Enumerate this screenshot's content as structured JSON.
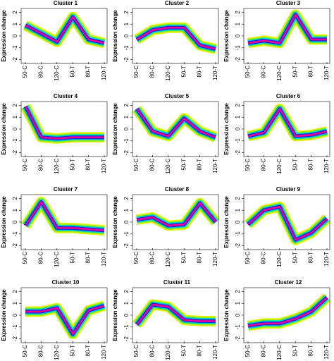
{
  "chart_data": [
    {
      "type": "line",
      "title": "Cluster 1",
      "categories": [
        "50-C",
        "80-C",
        "120-C",
        "50-T",
        "80-T",
        "120-T"
      ],
      "values": [
        0.9,
        0.2,
        -0.5,
        1.6,
        -0.3,
        -0.6
      ],
      "ylabel": "Expression change",
      "ylim": [
        -2.2,
        2.2
      ],
      "yticks": [
        -2,
        -1,
        0,
        1,
        2
      ]
    },
    {
      "type": "line",
      "title": "Cluster 2",
      "categories": [
        "50-C",
        "80-C",
        "120-C",
        "50-T",
        "80-T",
        "120-T"
      ],
      "values": [
        -0.3,
        0.5,
        0.7,
        0.7,
        -0.8,
        -1.1
      ],
      "ylabel": "Expression change",
      "ylim": [
        -2.2,
        2.2
      ],
      "yticks": [
        -2,
        -1,
        0,
        1,
        2
      ]
    },
    {
      "type": "line",
      "title": "Cluster 3",
      "categories": [
        "50-C",
        "80-C",
        "120-C",
        "50-T",
        "80-T",
        "120-T"
      ],
      "values": [
        -0.6,
        -0.4,
        -0.6,
        1.8,
        -0.3,
        -0.3
      ],
      "ylabel": "Expression change",
      "ylim": [
        -2.2,
        2.2
      ],
      "yticks": [
        -2,
        -1,
        0,
        1,
        2
      ]
    },
    {
      "type": "line",
      "title": "Cluster 4",
      "categories": [
        "50-C",
        "80-C",
        "120-C",
        "50-T",
        "80-T",
        "120-T"
      ],
      "values": [
        1.9,
        -0.7,
        -0.8,
        -0.7,
        -0.7,
        -0.7
      ],
      "ylabel": "Expression change",
      "ylim": [
        -2.2,
        2.2
      ],
      "yticks": [
        -2,
        -1,
        0,
        1,
        2
      ]
    },
    {
      "type": "line",
      "title": "Cluster 5",
      "categories": [
        "50-C",
        "80-C",
        "120-C",
        "50-T",
        "80-T",
        "120-T"
      ],
      "values": [
        1.7,
        -0.2,
        -0.6,
        0.9,
        -0.2,
        -0.7
      ],
      "ylabel": "Expression change",
      "ylim": [
        -2.2,
        2.2
      ],
      "yticks": [
        -2,
        -1,
        0,
        1,
        2
      ]
    },
    {
      "type": "line",
      "title": "Cluster 6",
      "categories": [
        "50-C",
        "80-C",
        "120-C",
        "50-T",
        "80-T",
        "120-T"
      ],
      "values": [
        -0.6,
        -0.3,
        1.7,
        -0.6,
        -0.5,
        -0.2
      ],
      "ylabel": "Expression change",
      "ylim": [
        -2.2,
        2.2
      ],
      "yticks": [
        -2,
        -1,
        0,
        1,
        2
      ]
    },
    {
      "type": "line",
      "title": "Cluster 7",
      "categories": [
        "50-C",
        "80-C",
        "120-C",
        "50-T",
        "80-T",
        "120-T"
      ],
      "values": [
        -0.3,
        1.7,
        -0.5,
        -0.5,
        -0.6,
        -0.7
      ],
      "ylabel": "Expression change",
      "ylim": [
        -2.2,
        2.2
      ],
      "yticks": [
        -2,
        -1,
        0,
        1,
        2
      ]
    },
    {
      "type": "line",
      "title": "Cluster 8",
      "categories": [
        "50-C",
        "80-C",
        "120-C",
        "50-T",
        "80-T",
        "120-T"
      ],
      "values": [
        0.2,
        0.4,
        -0.3,
        -0.2,
        1.6,
        0
      ],
      "ylabel": "Expression change",
      "ylim": [
        -2.2,
        2.2
      ],
      "yticks": [
        -2,
        -1,
        0,
        1,
        2
      ]
    },
    {
      "type": "line",
      "title": "Cluster 9",
      "categories": [
        "50-C",
        "80-C",
        "120-C",
        "50-T",
        "80-T",
        "120-T"
      ],
      "values": [
        -0.2,
        1.0,
        1.3,
        -1.5,
        -0.9,
        0.3
      ],
      "ylabel": "Expression change",
      "ylim": [
        -2.2,
        2.2
      ],
      "yticks": [
        -2,
        -1,
        0,
        1,
        2
      ]
    },
    {
      "type": "line",
      "title": "Cluster 10",
      "categories": [
        "50-C",
        "80-C",
        "120-C",
        "50-T",
        "80-T",
        "120-T"
      ],
      "values": [
        0.3,
        0.3,
        0.6,
        -1.6,
        0.4,
        0.8
      ],
      "ylabel": "Expression change",
      "ylim": [
        -2.2,
        2.2
      ],
      "yticks": [
        -2,
        -1,
        0,
        1,
        2
      ]
    },
    {
      "type": "line",
      "title": "Cluster 11",
      "categories": [
        "50-C",
        "80-C",
        "120-C",
        "50-T",
        "80-T",
        "120-T"
      ],
      "values": [
        -0.8,
        0.9,
        0.7,
        -0.4,
        -0.5,
        -0.5
      ],
      "ylabel": "Expression change",
      "ylim": [
        -2.2,
        2.2
      ],
      "yticks": [
        -2,
        -1,
        0,
        1,
        2
      ]
    },
    {
      "type": "line",
      "title": "Cluster 12",
      "categories": [
        "50-C",
        "80-C",
        "120-C",
        "50-T",
        "80-T",
        "120-T"
      ],
      "values": [
        -0.9,
        -0.7,
        -0.7,
        -0.3,
        0.3,
        1.5
      ],
      "ylabel": "Expression change",
      "ylim": [
        -2.2,
        2.2
      ],
      "yticks": [
        -2,
        -1,
        0,
        1,
        2
      ]
    }
  ]
}
